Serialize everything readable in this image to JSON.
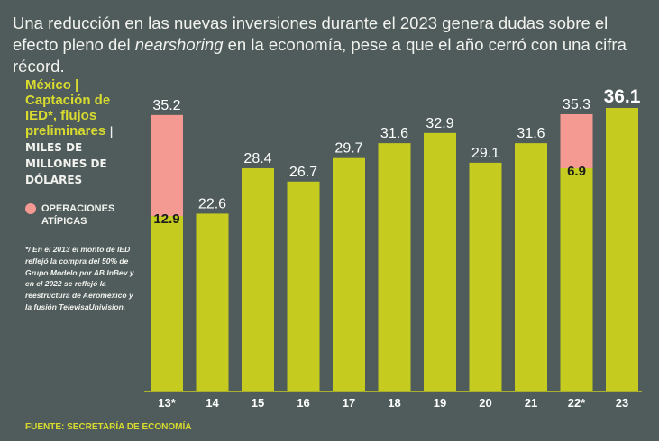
{
  "headline": {
    "part1": "Una reducción en las nuevas inversiones durante el 2023 genera dudas sobre el efecto pleno del ",
    "italic": "nearshoring",
    "part2": " en la economía, pese a que el año cerró con una cifra récord."
  },
  "side": {
    "title": "México | Captación de IED*, flujos preliminares",
    "unit": "| MILES DE MILLONES DE DÓLARES",
    "legend_label": "OPERACIONES ATÍPICAS",
    "note": "*/ En el 2013 el monto de IED reflejó la compra del 50% de Grupo Modelo por AB InBev y en el 2022 se reflejó la reestructura de Aeroméxico y la fusión TelevisaUnivision."
  },
  "source": "FUENTE: SECRETARÍA DE ECONOMÍA",
  "colors": {
    "background": "#4f5c5b",
    "bar": "#c5cc1f",
    "atypical": "#f49a93",
    "accent_text": "#d9dc2f"
  },
  "chart_data": {
    "type": "bar",
    "stacked": true,
    "categories": [
      "13*",
      "14",
      "15",
      "16",
      "17",
      "18",
      "19",
      "20",
      "21",
      "22*",
      "23"
    ],
    "totals": [
      35.2,
      22.6,
      28.4,
      26.7,
      29.7,
      31.6,
      32.9,
      29.1,
      31.6,
      35.3,
      36.1
    ],
    "total_labels": [
      "35.2",
      "22.6",
      "28.4",
      "26.7",
      "29.7",
      "31.6",
      "32.9",
      "29.1",
      "31.6",
      "35.3",
      "36.1"
    ],
    "series": [
      {
        "values": [
          22.3,
          22.6,
          28.4,
          26.7,
          29.7,
          31.6,
          32.9,
          29.1,
          31.6,
          28.4,
          36.1
        ]
      },
      {
        "name": "OPERACIONES ATÍPICAS",
        "values": [
          12.9,
          0,
          0,
          0,
          0,
          0,
          0,
          0,
          0,
          6.9,
          0
        ],
        "labels": [
          "12.9",
          "",
          "",
          "",
          "",
          "",
          "",
          "",
          "",
          "6.9",
          ""
        ]
      }
    ],
    "highlight_index": 10,
    "ylim": [
      0,
      37
    ],
    "grid": false,
    "legend": "left"
  }
}
